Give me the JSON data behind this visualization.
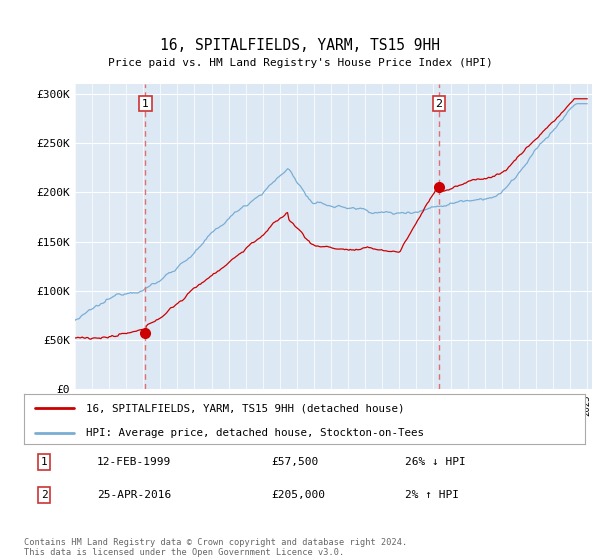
{
  "title": "16, SPITALFIELDS, YARM, TS15 9HH",
  "subtitle": "Price paid vs. HM Land Registry's House Price Index (HPI)",
  "plot_bg_color": "#dce9f5",
  "plot_bg_left_color": "#e8eff8",
  "hpi_color": "#7aadd4",
  "price_color": "#cc0000",
  "dashed_line_color": "#e07070",
  "ylim": [
    0,
    310000
  ],
  "yticks": [
    0,
    50000,
    100000,
    150000,
    200000,
    250000,
    300000
  ],
  "ytick_labels": [
    "£0",
    "£50K",
    "£100K",
    "£150K",
    "£200K",
    "£250K",
    "£300K"
  ],
  "x_start_year": 1995,
  "x_end_year": 2025,
  "sale1_date": 1999.12,
  "sale1_price": 57500,
  "sale2_date": 2016.32,
  "sale2_price": 205000,
  "sale1_date_str": "12-FEB-1999",
  "sale1_price_str": "£57,500",
  "sale1_hpi_pct": "26% ↓ HPI",
  "sale2_date_str": "25-APR-2016",
  "sale2_price_str": "£205,000",
  "sale2_hpi_pct": "2% ↑ HPI",
  "legend_label1": "16, SPITALFIELDS, YARM, TS15 9HH (detached house)",
  "legend_label2": "HPI: Average price, detached house, Stockton-on-Tees",
  "footnote": "Contains HM Land Registry data © Crown copyright and database right 2024.\nThis data is licensed under the Open Government Licence v3.0."
}
